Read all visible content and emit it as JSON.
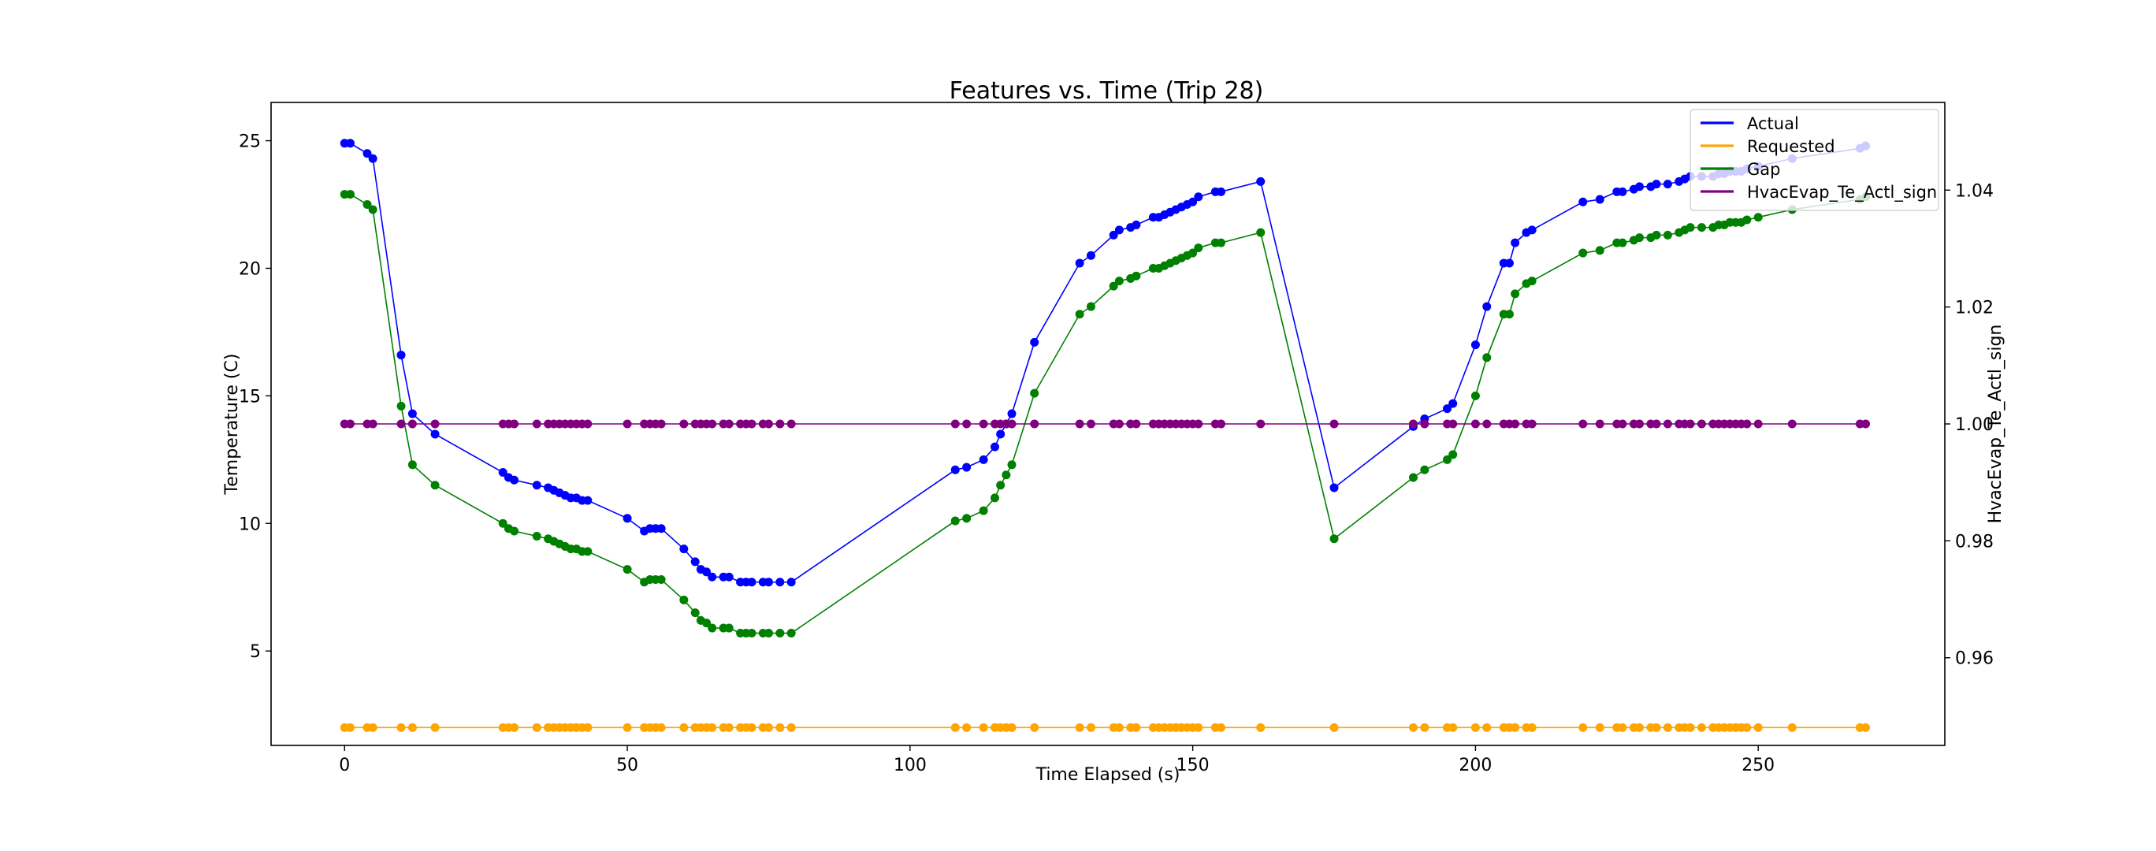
{
  "chart_data": {
    "type": "line",
    "title": "Features vs. Time (Trip 28)",
    "xlabel": "Time Elapsed (s)",
    "ylabel": "Temperature (C)",
    "y2label": "HvacEvap_Te_Actl_sign",
    "xlim": [
      -13,
      283
    ],
    "ylim": [
      1.3,
      26.5
    ],
    "y2lim": [
      0.945,
      1.055
    ],
    "xticks": [
      0,
      50,
      100,
      150,
      200,
      250
    ],
    "yticks": [
      5,
      10,
      15,
      20,
      25
    ],
    "y2ticks": [
      0.96,
      0.98,
      1.0,
      1.02,
      1.04
    ],
    "y2tick_labels": [
      "0.96",
      "0.98",
      "1.00",
      "1.02",
      "1.04"
    ],
    "grid": false,
    "legend_position": "top-right",
    "markers": "circle",
    "x": [
      0,
      1,
      4,
      5,
      10,
      12,
      16,
      28,
      29,
      30,
      34,
      36,
      37,
      38,
      39,
      40,
      41,
      42,
      43,
      50,
      53,
      54,
      55,
      56,
      60,
      62,
      63,
      64,
      65,
      67,
      68,
      70,
      71,
      72,
      74,
      75,
      77,
      79,
      108,
      110,
      113,
      115,
      116,
      117,
      118,
      122,
      130,
      132,
      136,
      137,
      139,
      140,
      143,
      144,
      145,
      146,
      147,
      148,
      149,
      150,
      151,
      154,
      155,
      162,
      175,
      189,
      191,
      195,
      196,
      200,
      202,
      205,
      206,
      207,
      209,
      210,
      219,
      222,
      225,
      226,
      228,
      229,
      231,
      232,
      234,
      236,
      237,
      238,
      240,
      242,
      243,
      244,
      245,
      246,
      247,
      248,
      250,
      256,
      268,
      269
    ],
    "series": [
      {
        "name": "Actual",
        "axis": "left",
        "color": "#0000ff",
        "values": [
          24.9,
          24.9,
          24.5,
          24.3,
          16.6,
          14.3,
          13.5,
          12.0,
          11.8,
          11.7,
          11.5,
          11.4,
          11.3,
          11.2,
          11.1,
          11.0,
          11.0,
          10.9,
          10.9,
          10.2,
          9.7,
          9.8,
          9.8,
          9.8,
          9.0,
          8.5,
          8.2,
          8.1,
          7.9,
          7.9,
          7.9,
          7.7,
          7.7,
          7.7,
          7.7,
          7.7,
          7.7,
          7.7,
          12.1,
          12.2,
          12.5,
          13.0,
          13.5,
          13.9,
          14.3,
          17.1,
          20.2,
          20.5,
          21.3,
          21.5,
          21.6,
          21.7,
          22.0,
          22.0,
          22.1,
          22.2,
          22.3,
          22.4,
          22.5,
          22.6,
          22.8,
          23.0,
          23.0,
          23.4,
          11.4,
          13.8,
          14.1,
          14.5,
          14.7,
          17.0,
          18.5,
          20.2,
          20.2,
          21.0,
          21.4,
          21.5,
          22.6,
          22.7,
          23.0,
          23.0,
          23.1,
          23.2,
          23.2,
          23.3,
          23.3,
          23.4,
          23.5,
          23.6,
          23.6,
          23.6,
          23.7,
          23.7,
          23.8,
          23.8,
          23.8,
          23.9,
          24.0,
          24.3,
          24.7,
          24.8
        ]
      },
      {
        "name": "Requested",
        "axis": "left",
        "color": "#ffa500",
        "values": [
          2.0,
          2.0,
          2.0,
          2.0,
          2.0,
          2.0,
          2.0,
          2.0,
          2.0,
          2.0,
          2.0,
          2.0,
          2.0,
          2.0,
          2.0,
          2.0,
          2.0,
          2.0,
          2.0,
          2.0,
          2.0,
          2.0,
          2.0,
          2.0,
          2.0,
          2.0,
          2.0,
          2.0,
          2.0,
          2.0,
          2.0,
          2.0,
          2.0,
          2.0,
          2.0,
          2.0,
          2.0,
          2.0,
          2.0,
          2.0,
          2.0,
          2.0,
          2.0,
          2.0,
          2.0,
          2.0,
          2.0,
          2.0,
          2.0,
          2.0,
          2.0,
          2.0,
          2.0,
          2.0,
          2.0,
          2.0,
          2.0,
          2.0,
          2.0,
          2.0,
          2.0,
          2.0,
          2.0,
          2.0,
          2.0,
          2.0,
          2.0,
          2.0,
          2.0,
          2.0,
          2.0,
          2.0,
          2.0,
          2.0,
          2.0,
          2.0,
          2.0,
          2.0,
          2.0,
          2.0,
          2.0,
          2.0,
          2.0,
          2.0,
          2.0,
          2.0,
          2.0,
          2.0,
          2.0,
          2.0,
          2.0,
          2.0,
          2.0,
          2.0,
          2.0,
          2.0,
          2.0,
          2.0,
          2.0,
          2.0
        ]
      },
      {
        "name": "Gap",
        "axis": "left",
        "color": "#008000",
        "values": [
          22.9,
          22.9,
          22.5,
          22.3,
          14.6,
          12.3,
          11.5,
          10.0,
          9.8,
          9.7,
          9.5,
          9.4,
          9.3,
          9.2,
          9.1,
          9.0,
          9.0,
          8.9,
          8.9,
          8.2,
          7.7,
          7.8,
          7.8,
          7.8,
          7.0,
          6.5,
          6.2,
          6.1,
          5.9,
          5.9,
          5.9,
          5.7,
          5.7,
          5.7,
          5.7,
          5.7,
          5.7,
          5.7,
          10.1,
          10.2,
          10.5,
          11.0,
          11.5,
          11.9,
          12.3,
          15.1,
          18.2,
          18.5,
          19.3,
          19.5,
          19.6,
          19.7,
          20.0,
          20.0,
          20.1,
          20.2,
          20.3,
          20.4,
          20.5,
          20.6,
          20.8,
          21.0,
          21.0,
          21.4,
          9.4,
          11.8,
          12.1,
          12.5,
          12.7,
          15.0,
          16.5,
          18.2,
          18.2,
          19.0,
          19.4,
          19.5,
          20.6,
          20.7,
          21.0,
          21.0,
          21.1,
          21.2,
          21.2,
          21.3,
          21.3,
          21.4,
          21.5,
          21.6,
          21.6,
          21.6,
          21.7,
          21.7,
          21.8,
          21.8,
          21.8,
          21.9,
          22.0,
          22.3,
          22.7,
          22.8
        ]
      },
      {
        "name": "HvacEvap_Te_Actl_sign",
        "axis": "right",
        "color": "#800080",
        "values": [
          1.0,
          1.0,
          1.0,
          1.0,
          1.0,
          1.0,
          1.0,
          1.0,
          1.0,
          1.0,
          1.0,
          1.0,
          1.0,
          1.0,
          1.0,
          1.0,
          1.0,
          1.0,
          1.0,
          1.0,
          1.0,
          1.0,
          1.0,
          1.0,
          1.0,
          1.0,
          1.0,
          1.0,
          1.0,
          1.0,
          1.0,
          1.0,
          1.0,
          1.0,
          1.0,
          1.0,
          1.0,
          1.0,
          1.0,
          1.0,
          1.0,
          1.0,
          1.0,
          1.0,
          1.0,
          1.0,
          1.0,
          1.0,
          1.0,
          1.0,
          1.0,
          1.0,
          1.0,
          1.0,
          1.0,
          1.0,
          1.0,
          1.0,
          1.0,
          1.0,
          1.0,
          1.0,
          1.0,
          1.0,
          1.0,
          1.0,
          1.0,
          1.0,
          1.0,
          1.0,
          1.0,
          1.0,
          1.0,
          1.0,
          1.0,
          1.0,
          1.0,
          1.0,
          1.0,
          1.0,
          1.0,
          1.0,
          1.0,
          1.0,
          1.0,
          1.0,
          1.0,
          1.0,
          1.0,
          1.0,
          1.0,
          1.0,
          1.0,
          1.0,
          1.0,
          1.0,
          1.0,
          1.0,
          1.0,
          1.0
        ]
      }
    ]
  }
}
